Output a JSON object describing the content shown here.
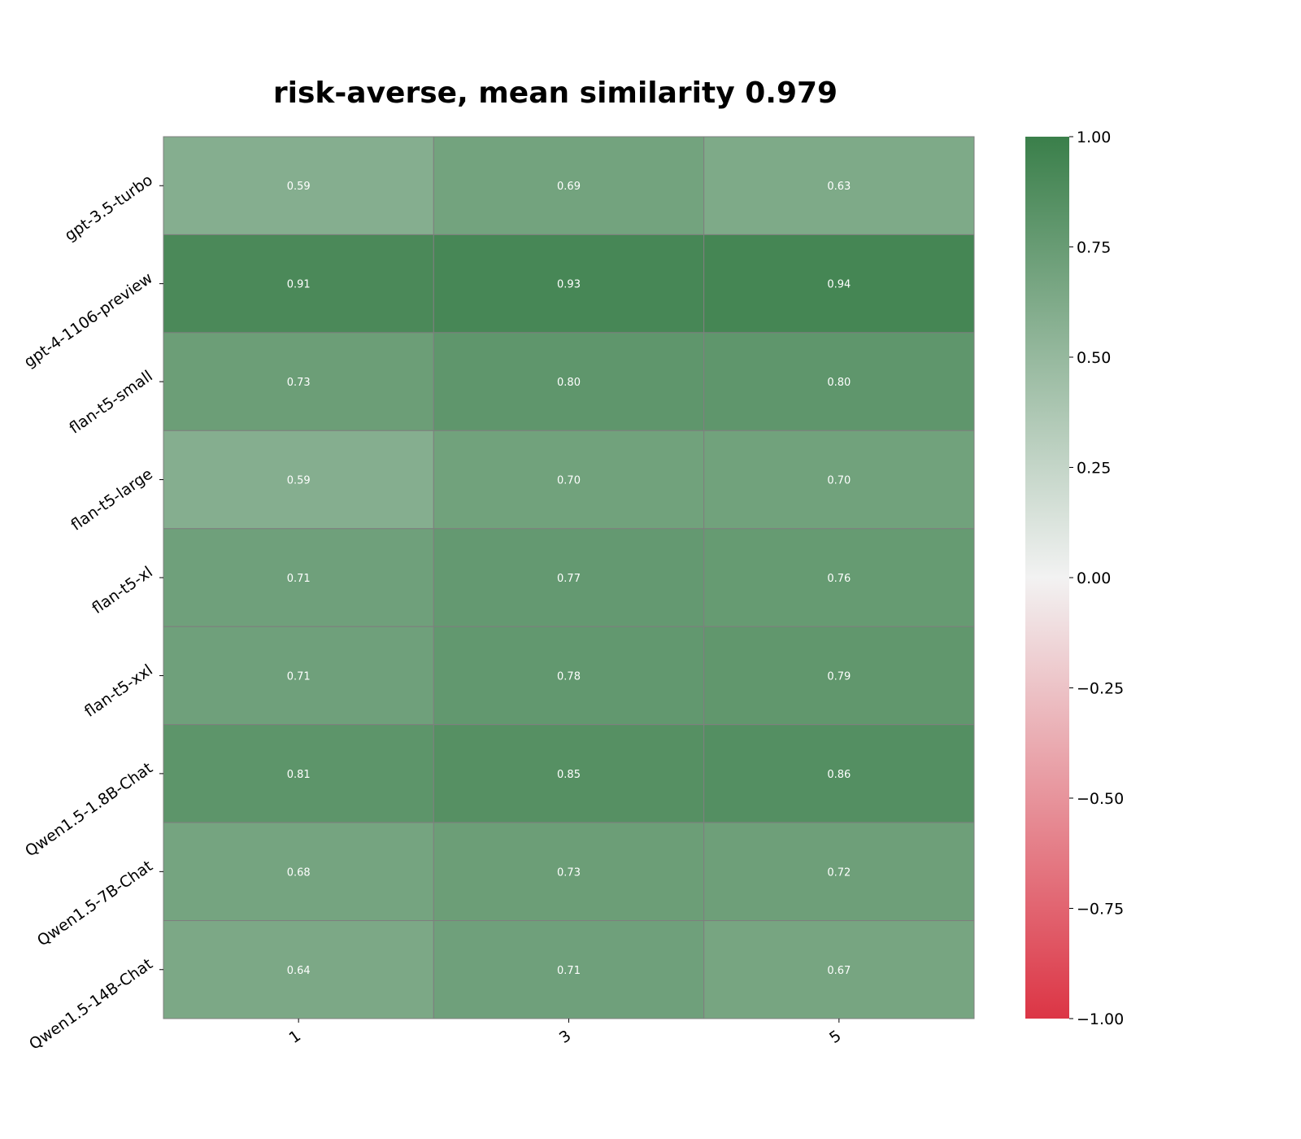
{
  "chart_data": {
    "type": "heatmap",
    "title": "risk-averse, mean similarity 0.979",
    "xlabel": "",
    "ylabel": "",
    "x_categories": [
      "1",
      "3",
      "5"
    ],
    "y_categories": [
      "gpt-3.5-turbo",
      "gpt-4-1106-preview",
      "flan-t5-small",
      "flan-t5-large",
      "flan-t5-xl",
      "flan-t5-xxl",
      "Qwen1.5-1.8B-Chat",
      "Qwen1.5-7B-Chat",
      "Qwen1.5-14B-Chat"
    ],
    "values": [
      [
        0.59,
        0.69,
        0.63
      ],
      [
        0.91,
        0.93,
        0.94
      ],
      [
        0.73,
        0.8,
        0.8
      ],
      [
        0.59,
        0.7,
        0.7
      ],
      [
        0.71,
        0.77,
        0.76
      ],
      [
        0.71,
        0.78,
        0.79
      ],
      [
        0.81,
        0.85,
        0.86
      ],
      [
        0.68,
        0.73,
        0.72
      ],
      [
        0.64,
        0.71,
        0.67
      ]
    ],
    "value_labels": [
      [
        "0.59",
        "0.69",
        "0.63"
      ],
      [
        "0.91",
        "0.93",
        "0.94"
      ],
      [
        "0.73",
        "0.80",
        "0.80"
      ],
      [
        "0.59",
        "0.70",
        "0.70"
      ],
      [
        "0.71",
        "0.77",
        "0.76"
      ],
      [
        "0.71",
        "0.78",
        "0.79"
      ],
      [
        "0.81",
        "0.85",
        "0.86"
      ],
      [
        "0.68",
        "0.73",
        "0.72"
      ],
      [
        "0.64",
        "0.71",
        "0.67"
      ]
    ],
    "colorbar": {
      "range": [
        -1.0,
        1.0
      ],
      "ticks": [
        1.0,
        0.75,
        0.5,
        0.25,
        0.0,
        -0.25,
        -0.5,
        -0.75,
        -1.0
      ],
      "tick_labels": [
        "1.00",
        "0.75",
        "0.50",
        "0.25",
        "0.00",
        "−0.25",
        "−0.50",
        "−0.75",
        "−1.00"
      ],
      "colors": {
        "low": "#dc3545",
        "mid": "#f2f2f2",
        "high": "#3a7f4a"
      }
    },
    "grid": true,
    "grid_color": "#7f7f7f"
  }
}
